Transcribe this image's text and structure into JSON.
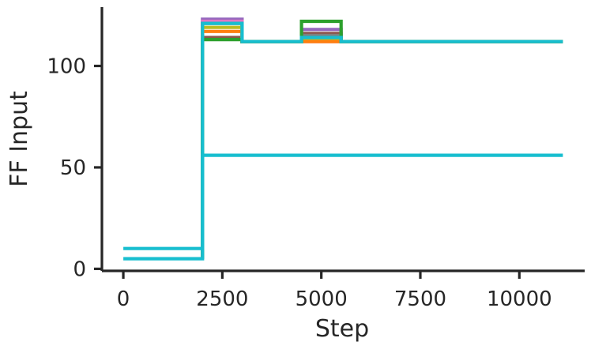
{
  "chart_data": {
    "type": "line",
    "title": "",
    "xlabel": "Step",
    "ylabel": "FF Input",
    "xlim": [
      -540,
      11650
    ],
    "ylim": [
      -1,
      129
    ],
    "xticks": [
      0,
      2500,
      5000,
      7500,
      10000
    ],
    "xtick_labels": [
      "0",
      "2500",
      "5000",
      "7500",
      "10000"
    ],
    "yticks": [
      0,
      50,
      100
    ],
    "ytick_labels": [
      "0",
      "50",
      "100"
    ],
    "grid": false,
    "legend": "none",
    "series": [
      {
        "color": "#8c564b",
        "x": [
          2000,
          2000,
          3000,
          3000,
          4500,
          4500,
          5500,
          5500,
          11100
        ],
        "y": [
          5,
          114,
          114,
          112,
          112,
          116,
          116,
          112,
          112
        ]
      },
      {
        "color": "#9467bd",
        "x": [
          2000,
          2000,
          3000,
          3000,
          4500,
          4500,
          5500,
          5500,
          11100
        ],
        "y": [
          5,
          123,
          123,
          112,
          112,
          118,
          118,
          112,
          112
        ]
      },
      {
        "color": "#e377c2",
        "x": [
          2000,
          2000,
          3000,
          3000,
          11100
        ],
        "y": [
          5,
          122,
          122,
          112,
          112
        ]
      },
      {
        "color": "#7f7f7f",
        "x": [
          2000,
          2000,
          3000,
          3000,
          4500,
          4500,
          5500,
          5500,
          11100
        ],
        "y": [
          5,
          121,
          121,
          112,
          112,
          115,
          115,
          112,
          112
        ]
      },
      {
        "color": "#bcbd22",
        "x": [
          2000,
          2000,
          3000,
          3000,
          4500,
          4500,
          5500,
          5500,
          11100
        ],
        "y": [
          5,
          119,
          119,
          112,
          112,
          113,
          113,
          112,
          112
        ]
      },
      {
        "color": "#ff7f0e",
        "x": [
          2000,
          2000,
          3000,
          3000,
          11100
        ],
        "y": [
          5,
          117,
          117,
          112,
          112
        ]
      },
      {
        "color": "#2ca02c",
        "x": [
          2000,
          2000,
          3000,
          3000,
          4500,
          4500,
          5500,
          5500,
          11100
        ],
        "y": [
          5,
          113,
          113,
          112,
          112,
          122,
          122,
          112,
          112
        ]
      },
      {
        "color": "#17becf",
        "x": [
          0,
          2000,
          2000,
          3000,
          3000,
          4500,
          4500,
          5500,
          5500,
          11100
        ],
        "y": [
          10,
          10,
          121,
          121,
          112,
          112,
          114,
          114,
          112,
          112
        ]
      },
      {
        "color": "#17becf",
        "x": [
          0,
          2000,
          2000,
          11100
        ],
        "y": [
          5,
          5,
          56,
          56
        ]
      }
    ]
  }
}
